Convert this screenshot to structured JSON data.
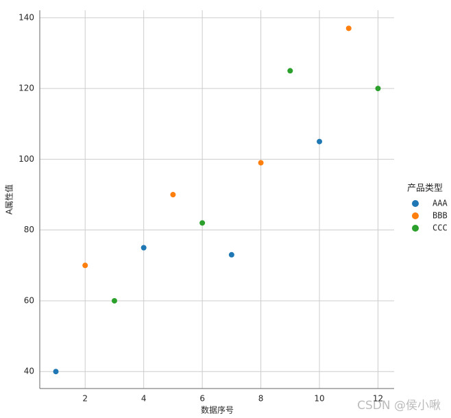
{
  "chart_data": {
    "type": "scatter",
    "xlabel": "数据序号",
    "ylabel": "A属性值",
    "legend_title": "产品类型",
    "legend": "right",
    "series": [
      {
        "name": "AAA",
        "color": "#1f77b4",
        "x": [
          1,
          4,
          7,
          10
        ],
        "values": [
          40,
          75,
          73,
          105
        ]
      },
      {
        "name": "BBB",
        "color": "#ff7f0e",
        "x": [
          2,
          5,
          8,
          11
        ],
        "values": [
          70,
          90,
          99,
          137
        ]
      },
      {
        "name": "CCC",
        "color": "#2ca02c",
        "x": [
          3,
          6,
          9,
          12
        ],
        "values": [
          60,
          82,
          125,
          120
        ]
      }
    ],
    "xlim": [
      0.45,
      12.55
    ],
    "ylim": [
      35.2,
      142.1
    ],
    "xticks": [
      2,
      4,
      6,
      8,
      10,
      12
    ],
    "yticks": [
      40,
      60,
      80,
      100,
      120,
      140
    ],
    "grid": true,
    "watermark": "CSDN @侯小啾"
  }
}
